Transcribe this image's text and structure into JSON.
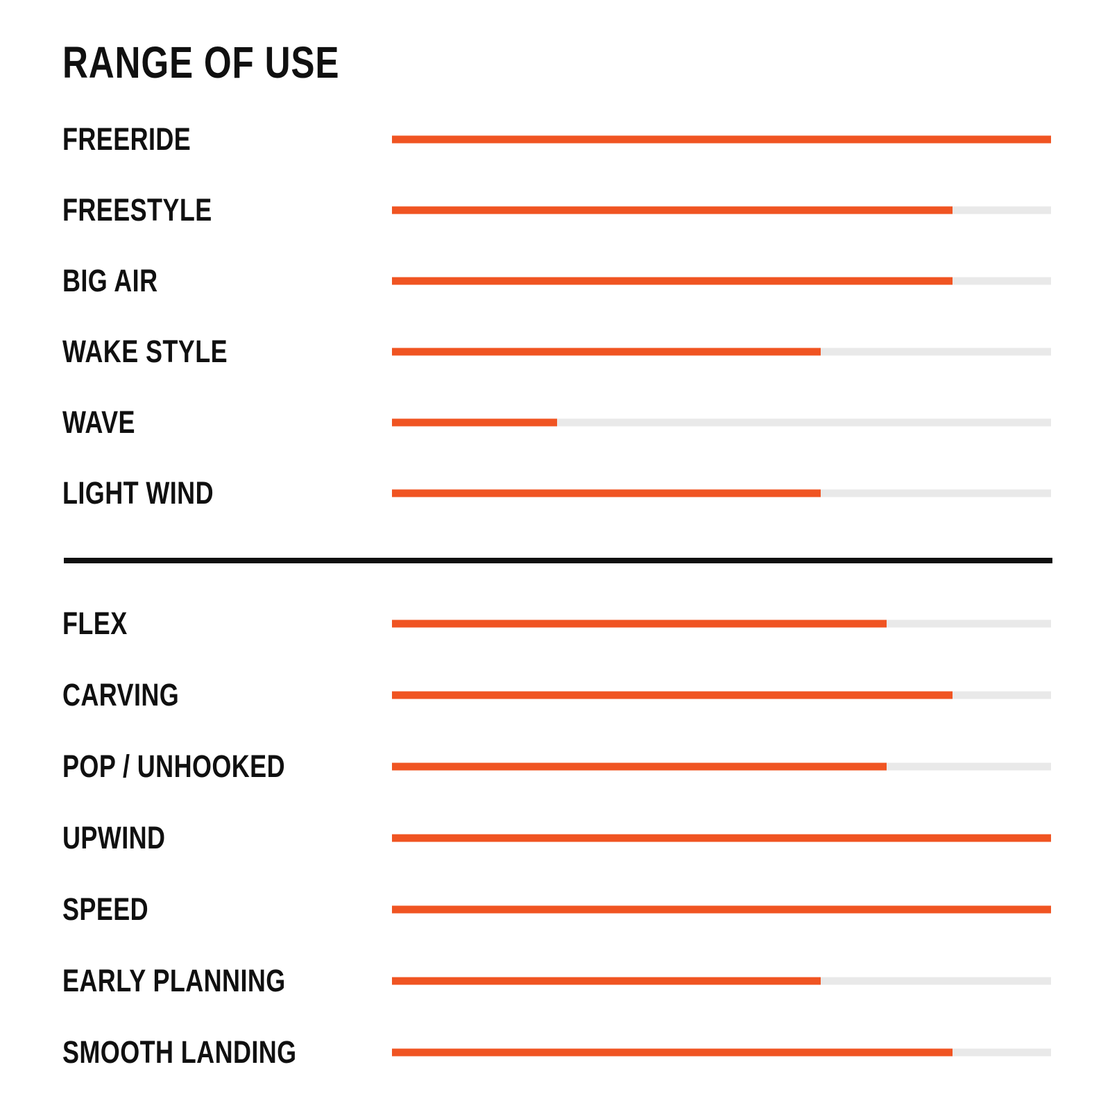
{
  "title": "RANGE OF USE",
  "colors": {
    "bar_fill": "#F05422",
    "bar_track": "#E9E9E9",
    "text": "#101010",
    "divider": "#101010",
    "background": "#FFFFFF"
  },
  "chart_data": {
    "type": "bar",
    "orientation": "horizontal",
    "title": "RANGE OF USE",
    "xlabel": "",
    "ylabel": "",
    "value_range": [
      0,
      100
    ],
    "unit": "percent of full track",
    "grid": false,
    "legend": "none",
    "bar_color": "#F05422",
    "track_color": "#E9E9E9",
    "sections": [
      {
        "name": "range-of-use",
        "categories": [
          "FREERIDE",
          "FREESTYLE",
          "BIG AIR",
          "WAKE STYLE",
          "WAVE",
          "LIGHT WIND"
        ],
        "values": [
          100,
          85,
          85,
          65,
          25,
          65
        ]
      },
      {
        "name": "board-characteristics",
        "categories": [
          "FLEX",
          "CARVING",
          "POP / UNHOOKED",
          "UPWIND",
          "SPEED",
          "EARLY PLANNING",
          "SMOOTH LANDING"
        ],
        "values": [
          75,
          85,
          75,
          100,
          100,
          65,
          85
        ]
      }
    ]
  }
}
